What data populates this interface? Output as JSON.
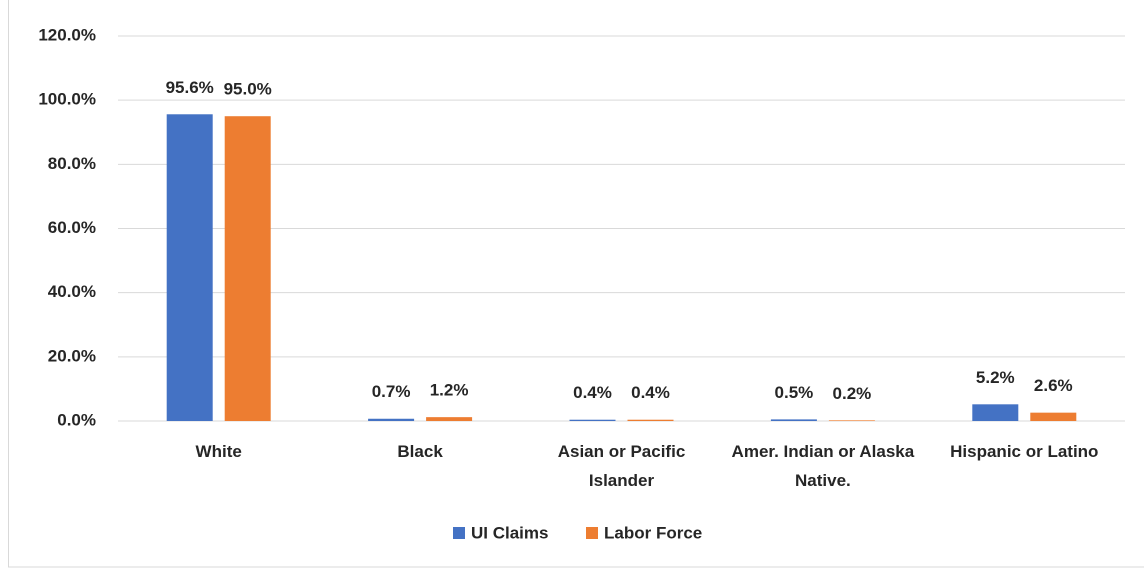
{
  "chart_data": {
    "type": "bar",
    "categories": [
      "White",
      "Black",
      "Asian or Pacific Islander",
      "Amer. Indian or Alaska Native.",
      "Hispanic or Latino"
    ],
    "series": [
      {
        "name": "UI Claims",
        "color": "#4472c4",
        "values": [
          95.6,
          0.7,
          0.4,
          0.5,
          5.2
        ],
        "value_labels": [
          "95.6%",
          "0.7%",
          "0.4%",
          "0.5%",
          "5.2%"
        ]
      },
      {
        "name": "Labor Force",
        "color": "#ed7d31",
        "values": [
          95.0,
          1.2,
          0.4,
          0.2,
          2.6
        ],
        "value_labels": [
          "95.0%",
          "1.2%",
          "0.4%",
          "0.2%",
          "2.6%"
        ]
      }
    ],
    "ylim": [
      0,
      120
    ],
    "yticks": [
      {
        "value": 0,
        "label": "0.0%"
      },
      {
        "value": 20,
        "label": "20.0%"
      },
      {
        "value": 40,
        "label": "40.0%"
      },
      {
        "value": 60,
        "label": "60.0%"
      },
      {
        "value": 80,
        "label": "80.0%"
      },
      {
        "value": 100,
        "label": "100.0%"
      },
      {
        "value": 120,
        "label": "120.0%"
      }
    ],
    "grid": true,
    "legend": "bottom"
  }
}
